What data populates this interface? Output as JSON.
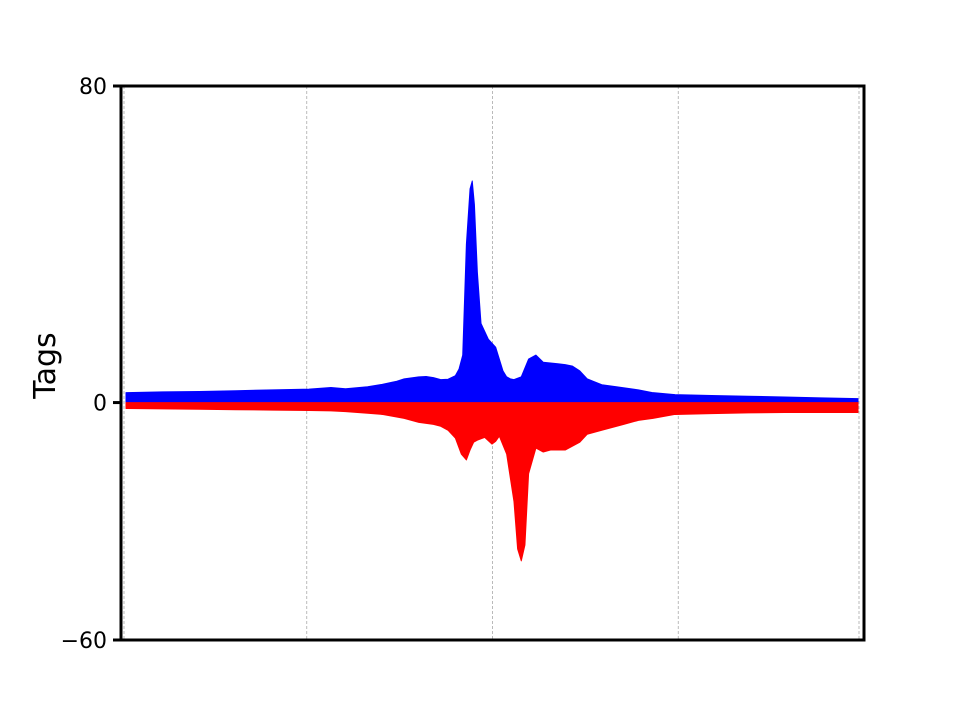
{
  "chart_data": {
    "type": "area",
    "title": "",
    "xlabel": "",
    "ylabel": "Tags",
    "ylim": [
      -60,
      80
    ],
    "yticks": [
      -60,
      0,
      80
    ],
    "ytick_labels": [
      "−60",
      "0",
      "80"
    ],
    "xlim": [
      0,
      100
    ],
    "xgrid_positions": [
      0,
      25,
      50,
      75,
      100
    ],
    "grid": "vertical-dashed",
    "series": [
      {
        "color": "#0000ff",
        "x": [
          0,
          5,
          10,
          15,
          20,
          25,
          28,
          30,
          33,
          35,
          37,
          38,
          40,
          41,
          42,
          43,
          44,
          45,
          45.5,
          46,
          46.5,
          47,
          47.3,
          47.6,
          48,
          48.5,
          49,
          49.5,
          50,
          50.5,
          51,
          51.5,
          52,
          52.5,
          53,
          54,
          55,
          56,
          57,
          58,
          59,
          60,
          61,
          62,
          63,
          65,
          67,
          70,
          72,
          75,
          80,
          85,
          90,
          95,
          100
        ],
        "values": [
          2.5,
          2.7,
          2.8,
          3.0,
          3.2,
          3.4,
          3.8,
          3.5,
          4.0,
          4.6,
          5.4,
          6.0,
          6.5,
          6.6,
          6.3,
          5.8,
          5.9,
          6.8,
          8.5,
          12,
          40,
          54,
          56,
          50,
          33,
          20,
          18,
          16,
          15,
          14,
          11,
          8,
          6.5,
          6.0,
          5.8,
          6.5,
          11,
          12,
          10.2,
          10,
          9.8,
          9.6,
          9.2,
          8.0,
          6.0,
          4.5,
          4.0,
          3.2,
          2.5,
          2.0,
          1.8,
          1.6,
          1.4,
          1.2,
          1.0
        ]
      },
      {
        "color": "#ff0000",
        "x": [
          0,
          5,
          10,
          15,
          20,
          25,
          28,
          30,
          33,
          35,
          38,
          40,
          42,
          43,
          44,
          45,
          45.8,
          46.5,
          47,
          47.5,
          48,
          49,
          50,
          50.5,
          51,
          52,
          53,
          53.5,
          54,
          54.5,
          55,
          56,
          57,
          58,
          60,
          62,
          63,
          65,
          68,
          70,
          72,
          75,
          80,
          85,
          90,
          95,
          100
        ],
        "values": [
          -1.5,
          -1.6,
          -1.7,
          -1.8,
          -1.9,
          -2.0,
          -2.1,
          -2.3,
          -2.7,
          -3.0,
          -4.0,
          -5.0,
          -5.5,
          -6.0,
          -7.0,
          -9.0,
          -13.0,
          -14.5,
          -12.0,
          -10.0,
          -9.5,
          -8.8,
          -10.5,
          -9.8,
          -8.5,
          -13.0,
          -25.0,
          -37.0,
          -40.0,
          -36.0,
          -18.0,
          -11.5,
          -12.5,
          -12.0,
          -12.0,
          -10.0,
          -8.0,
          -7.0,
          -5.5,
          -4.5,
          -4.0,
          -3.0,
          -2.8,
          -2.6,
          -2.5,
          -2.5,
          -2.5
        ]
      }
    ]
  }
}
